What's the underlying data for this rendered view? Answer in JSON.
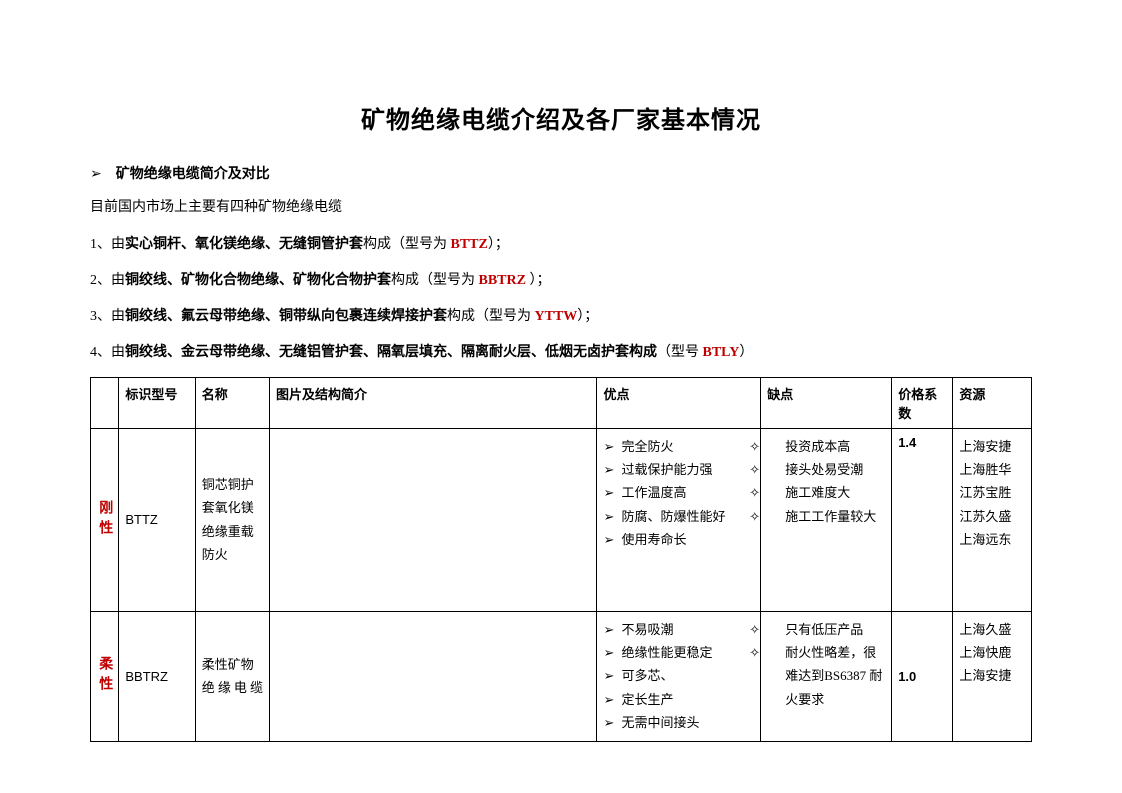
{
  "title": "矿物绝缘电缆介绍及各厂家基本情况",
  "section_head": "矿物绝缘电缆简介及对比",
  "intro_line": "目前国内市场上主要有四种矿物绝缘电缆",
  "items": [
    {
      "num": "1",
      "pre": "、由",
      "bold": "实心铜杆、氧化镁绝缘、无缝铜管护套",
      "mid": "构成（型号为 ",
      "model": "BTTZ",
      "tail": "）；"
    },
    {
      "num": "2",
      "pre": "、由",
      "bold": "铜绞线、矿物化合物绝缘、矿物化合物护套",
      "mid": "构成（型号为 ",
      "model": "BBTRZ",
      "tail": " ）；"
    },
    {
      "num": "3",
      "pre": "、由",
      "bold": "铜绞线、氟云母带绝缘、铜带纵向包裹连续焊接护套",
      "mid": "构成（型号为 ",
      "model": "YTTW",
      "tail": "）；"
    },
    {
      "num": "4",
      "pre": "、由",
      "bold": "铜绞线、金云母带绝缘、无缝铝管护套、隔氧层填充、隔离耐火层、低烟无卤护套构成",
      "mid": "（型号 ",
      "model": "BTLY",
      "tail": "）"
    }
  ],
  "table": {
    "headers": [
      "",
      "标识型号",
      "名称",
      "图片及结构简介",
      "优点",
      "缺点",
      "价格系数",
      "资源"
    ],
    "rows": [
      {
        "category": "刚性",
        "model": "BTTZ",
        "name": "铜芯铜护套氧化镁绝缘重载防火",
        "advantages": [
          "完全防火",
          "过载保护能力强",
          "工作温度高",
          "防腐、防爆性能好",
          "使用寿命长"
        ],
        "disadvantages": [
          "投资成本高",
          "接头处易受潮",
          "施工难度大",
          "施工工作量较大"
        ],
        "price": "1.4",
        "resources": [
          "上海安捷",
          "上海胜华",
          "江苏宝胜",
          "江苏久盛",
          "上海远东"
        ]
      },
      {
        "category": "柔性",
        "model": "BBTRZ",
        "name": "柔性矿物绝缘电缆",
        "advantages": [
          "不易吸潮",
          "绝缘性能更稳定",
          "可多芯、",
          "定长生产",
          "无需中间接头"
        ],
        "disadvantages": [
          "只有低压产品",
          "耐火性略差，很难达到BS6387 耐火要求"
        ],
        "price": "1.0",
        "resources": [
          "上海久盛",
          "上海快鹿",
          "上海安捷"
        ]
      }
    ]
  }
}
